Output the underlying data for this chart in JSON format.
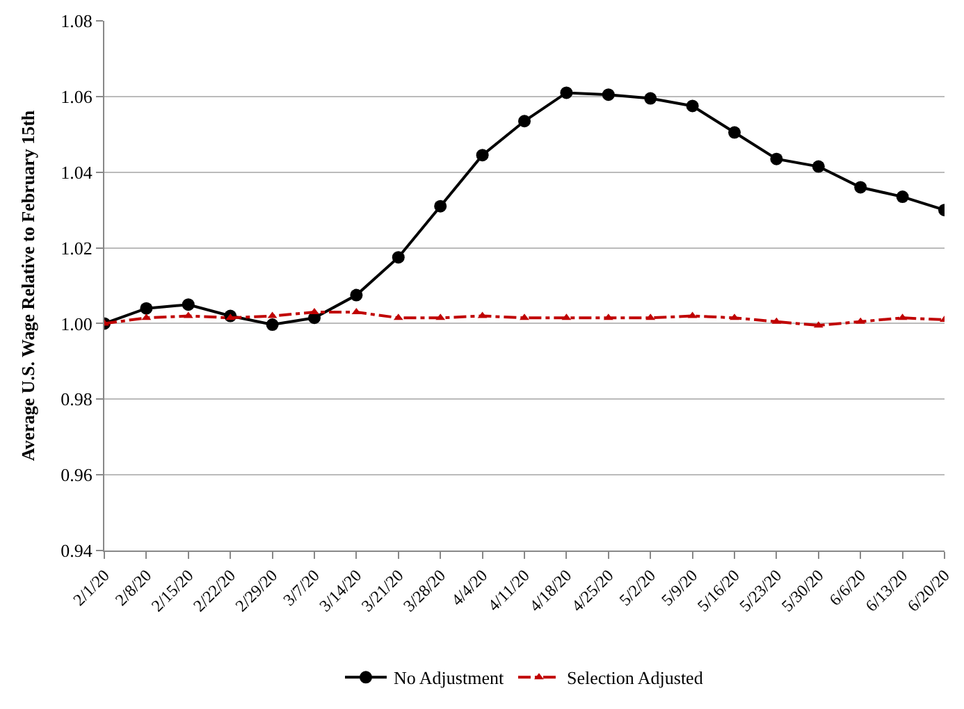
{
  "chart_data": {
    "type": "line",
    "ylabel": "Average U.S. Wage Relative to February 15th",
    "categories": [
      "2/1/20",
      "2/8/20",
      "2/15/20",
      "2/22/20",
      "2/29/20",
      "3/7/20",
      "3/14/20",
      "3/21/20",
      "3/28/20",
      "4/4/20",
      "4/11/20",
      "4/18/20",
      "4/25/20",
      "5/2/20",
      "5/9/20",
      "5/16/20",
      "5/23/20",
      "5/30/20",
      "6/6/20",
      "6/13/20",
      "6/20/20"
    ],
    "series": [
      {
        "name": "No Adjustment",
        "color": "#000000",
        "marker": "circle",
        "line_style": "solid",
        "values": [
          1.0,
          1.004,
          1.005,
          1.002,
          0.9997,
          1.0015,
          1.0075,
          1.0175,
          1.031,
          1.0445,
          1.0535,
          1.061,
          1.0605,
          1.0595,
          1.0575,
          1.0505,
          1.0435,
          1.0415,
          1.036,
          1.0335,
          1.03
        ]
      },
      {
        "name": "Selection Adjusted",
        "color": "#c00000",
        "marker": "triangle",
        "line_style": "dashdot",
        "values": [
          1.0,
          1.0015,
          1.002,
          1.0015,
          1.002,
          1.003,
          1.003,
          1.0015,
          1.0015,
          1.002,
          1.0015,
          1.0015,
          1.0015,
          1.0015,
          1.002,
          1.0015,
          1.0005,
          0.9995,
          1.0005,
          1.0015,
          1.001
        ]
      }
    ],
    "ylim": [
      0.94,
      1.08
    ],
    "yticks": [
      {
        "value": 0.94,
        "label": "0.94"
      },
      {
        "value": 0.96,
        "label": "0.96"
      },
      {
        "value": 0.98,
        "label": "0.98"
      },
      {
        "value": 1.0,
        "label": "1.00"
      },
      {
        "value": 1.02,
        "label": "1.02"
      },
      {
        "value": 1.04,
        "label": "1.04"
      },
      {
        "value": 1.06,
        "label": "1.06"
      },
      {
        "value": 1.08,
        "label": "1.08"
      }
    ],
    "grid": "y",
    "legend": "bottom"
  }
}
